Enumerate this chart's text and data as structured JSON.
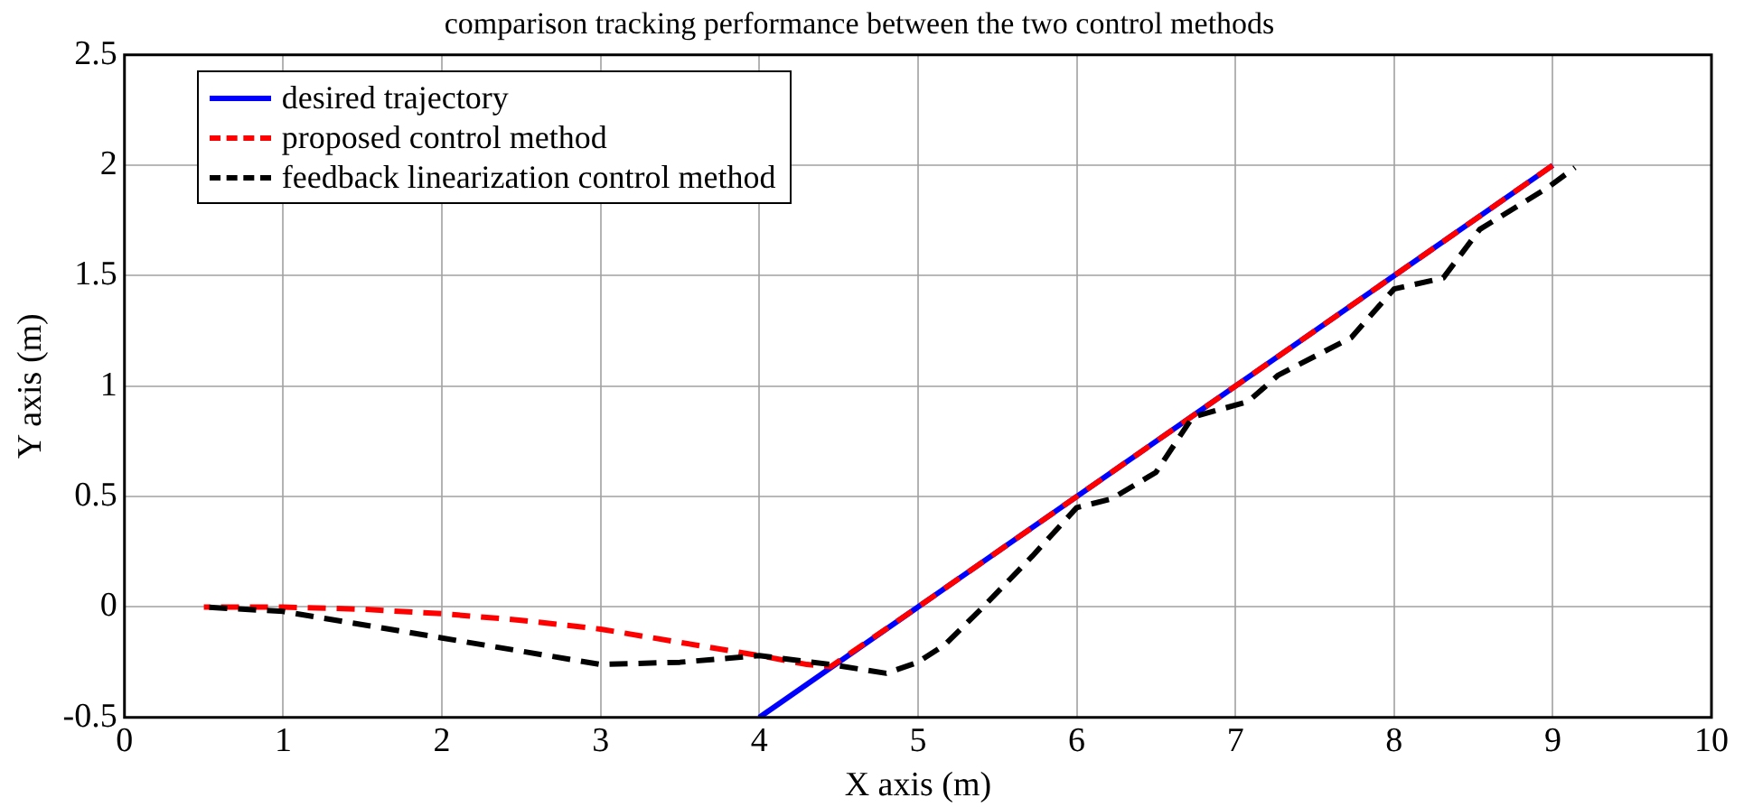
{
  "chart_data": {
    "type": "line",
    "title": "comparison tracking performance between the two control methods",
    "xlabel": "X axis (m)",
    "ylabel": "Y axis (m)",
    "xlim": [
      0,
      10
    ],
    "xticks": [
      0,
      1,
      2,
      3,
      4,
      5,
      6,
      7,
      8,
      9,
      10
    ],
    "ylim": [
      -0.5,
      2.5
    ],
    "yticks": [
      -0.5,
      0,
      0.5,
      1,
      1.5,
      2,
      2.5
    ],
    "grid": true,
    "legend": "top left",
    "marker": "none",
    "series": [
      {
        "name": "desired trajectory",
        "color": "#0000ff",
        "line_style": "solid",
        "x": [
          4,
          9
        ],
        "values": [
          -0.5,
          2
        ]
      },
      {
        "name": "proposed control method",
        "color": "#ff0000",
        "line_style": "dashed",
        "x": [
          0.5,
          1,
          1.5,
          2,
          2.5,
          3,
          3.5,
          4,
          4.3,
          4.45,
          5,
          6,
          7,
          8,
          9
        ],
        "values": [
          0,
          0,
          -0.01,
          -0.03,
          -0.06,
          -0.1,
          -0.16,
          -0.22,
          -0.26,
          -0.27,
          0,
          0.5,
          1,
          1.5,
          2
        ]
      },
      {
        "name": "feedback linearization control method",
        "color": "#000000",
        "line_style": "dashed",
        "x": [
          0.5,
          1,
          2,
          3,
          3.5,
          4,
          4.45,
          4.8,
          5,
          5.17,
          5.41,
          5.72,
          6,
          6.22,
          6.5,
          6.73,
          7.08,
          7.27,
          7.73,
          8,
          8.31,
          8.54,
          8.97,
          9.14
        ],
        "values": [
          0,
          -0.02,
          -0.14,
          -0.26,
          -0.25,
          -0.22,
          -0.26,
          -0.3,
          -0.25,
          -0.17,
          0,
          0.23,
          0.45,
          0.49,
          0.61,
          0.86,
          0.93,
          1.05,
          1.22,
          1.44,
          1.49,
          1.71,
          1.9,
          1.99
        ]
      }
    ]
  }
}
